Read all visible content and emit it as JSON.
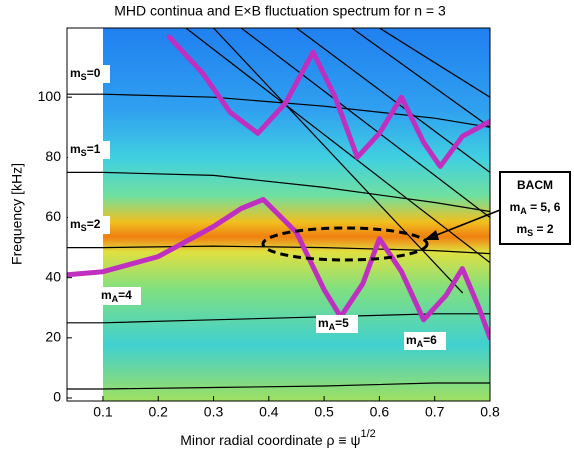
{
  "chart_data": {
    "type": "line",
    "title": "MHD continua and E×B fluctuation spectrum for n = 3",
    "xlabel": {
      "text": "Minor radial coordinate ρ ≡ ψ",
      "sup": "1/2"
    },
    "ylabel": "Frequency [kHz]",
    "xlim": [
      0.035,
      0.8
    ],
    "ylim": [
      -1,
      123
    ],
    "xticks": [
      0.1,
      0.2,
      0.3,
      0.4,
      0.5,
      0.6,
      0.7,
      0.8
    ],
    "yticks": [
      0,
      20,
      40,
      60,
      80,
      100
    ],
    "series": [
      {
        "color": "#c030c0",
        "x": [
          0.035,
          0.1,
          0.2,
          0.3,
          0.35,
          0.39,
          0.45,
          0.5,
          0.53,
          0.57,
          0.6,
          0.64,
          0.68,
          0.72,
          0.75,
          0.78,
          0.8
        ],
        "values": [
          41,
          42,
          47,
          57,
          63,
          66,
          55,
          36,
          27,
          38,
          53,
          42,
          26,
          34,
          43,
          30,
          20
        ]
      },
      {
        "color": "#c030c0",
        "x": [
          0.22,
          0.28,
          0.33,
          0.38,
          0.43,
          0.48,
          0.52,
          0.56,
          0.6,
          0.64,
          0.68,
          0.71,
          0.75,
          0.8
        ],
        "values": [
          120,
          108,
          95,
          88,
          98,
          115,
          100,
          80,
          88,
          100,
          85,
          77,
          87,
          92
        ]
      },
      {
        "color": "#000000",
        "x": [
          0.035,
          0.1,
          0.3,
          0.5,
          0.7,
          0.8
        ],
        "values": [
          101,
          101,
          100,
          97,
          93,
          90
        ]
      },
      {
        "color": "#000000",
        "x": [
          0.035,
          0.1,
          0.3,
          0.5,
          0.7,
          0.8
        ],
        "values": [
          75,
          75,
          74,
          70,
          65,
          62
        ]
      },
      {
        "color": "#000000",
        "x": [
          0.035,
          0.1,
          0.3,
          0.5,
          0.7,
          0.8
        ],
        "values": [
          50,
          50,
          50.5,
          50,
          49,
          48
        ]
      },
      {
        "color": "#000000",
        "x": [
          0.035,
          0.1,
          0.3,
          0.5,
          0.7,
          0.8
        ],
        "values": [
          25,
          25,
          26,
          27,
          28,
          28
        ]
      },
      {
        "color": "#000000",
        "x": [
          0.035,
          0.1,
          0.3,
          0.5,
          0.7,
          0.8
        ],
        "values": [
          3,
          3,
          3.5,
          4,
          5,
          5
        ]
      },
      {
        "color": "#000000",
        "x": [
          0.25,
          0.8
        ],
        "values": [
          123,
          45
        ]
      },
      {
        "color": "#000000",
        "x": [
          0.3,
          0.75
        ],
        "values": [
          123,
          35
        ]
      },
      {
        "color": "#000000",
        "x": [
          0.35,
          0.8
        ],
        "values": [
          123,
          60
        ]
      },
      {
        "color": "#000000",
        "x": [
          0.45,
          0.8
        ],
        "values": [
          123,
          75
        ]
      },
      {
        "color": "#000000",
        "x": [
          0.55,
          0.8
        ],
        "values": [
          123,
          90
        ]
      },
      {
        "color": "#000000",
        "x": [
          0.6,
          0.8
        ],
        "values": [
          123,
          100
        ]
      }
    ],
    "annotations": [
      {
        "base": "m",
        "sub": "S",
        "tail": "=0"
      },
      {
        "base": "m",
        "sub": "S",
        "tail": "=1"
      },
      {
        "base": "m",
        "sub": "S",
        "tail": "=2"
      },
      {
        "base": "m",
        "sub": "A",
        "tail": "=4"
      },
      {
        "base": "m",
        "sub": "A",
        "tail": "=5"
      },
      {
        "base": "m",
        "sub": "A",
        "tail": "=6"
      }
    ],
    "box": [
      {
        "base": "BACM"
      },
      {
        "base": "m",
        "sub": "A",
        "tail": " = 5, 6"
      },
      {
        "base": "m",
        "sub": "S",
        "tail": " = 2"
      }
    ]
  }
}
